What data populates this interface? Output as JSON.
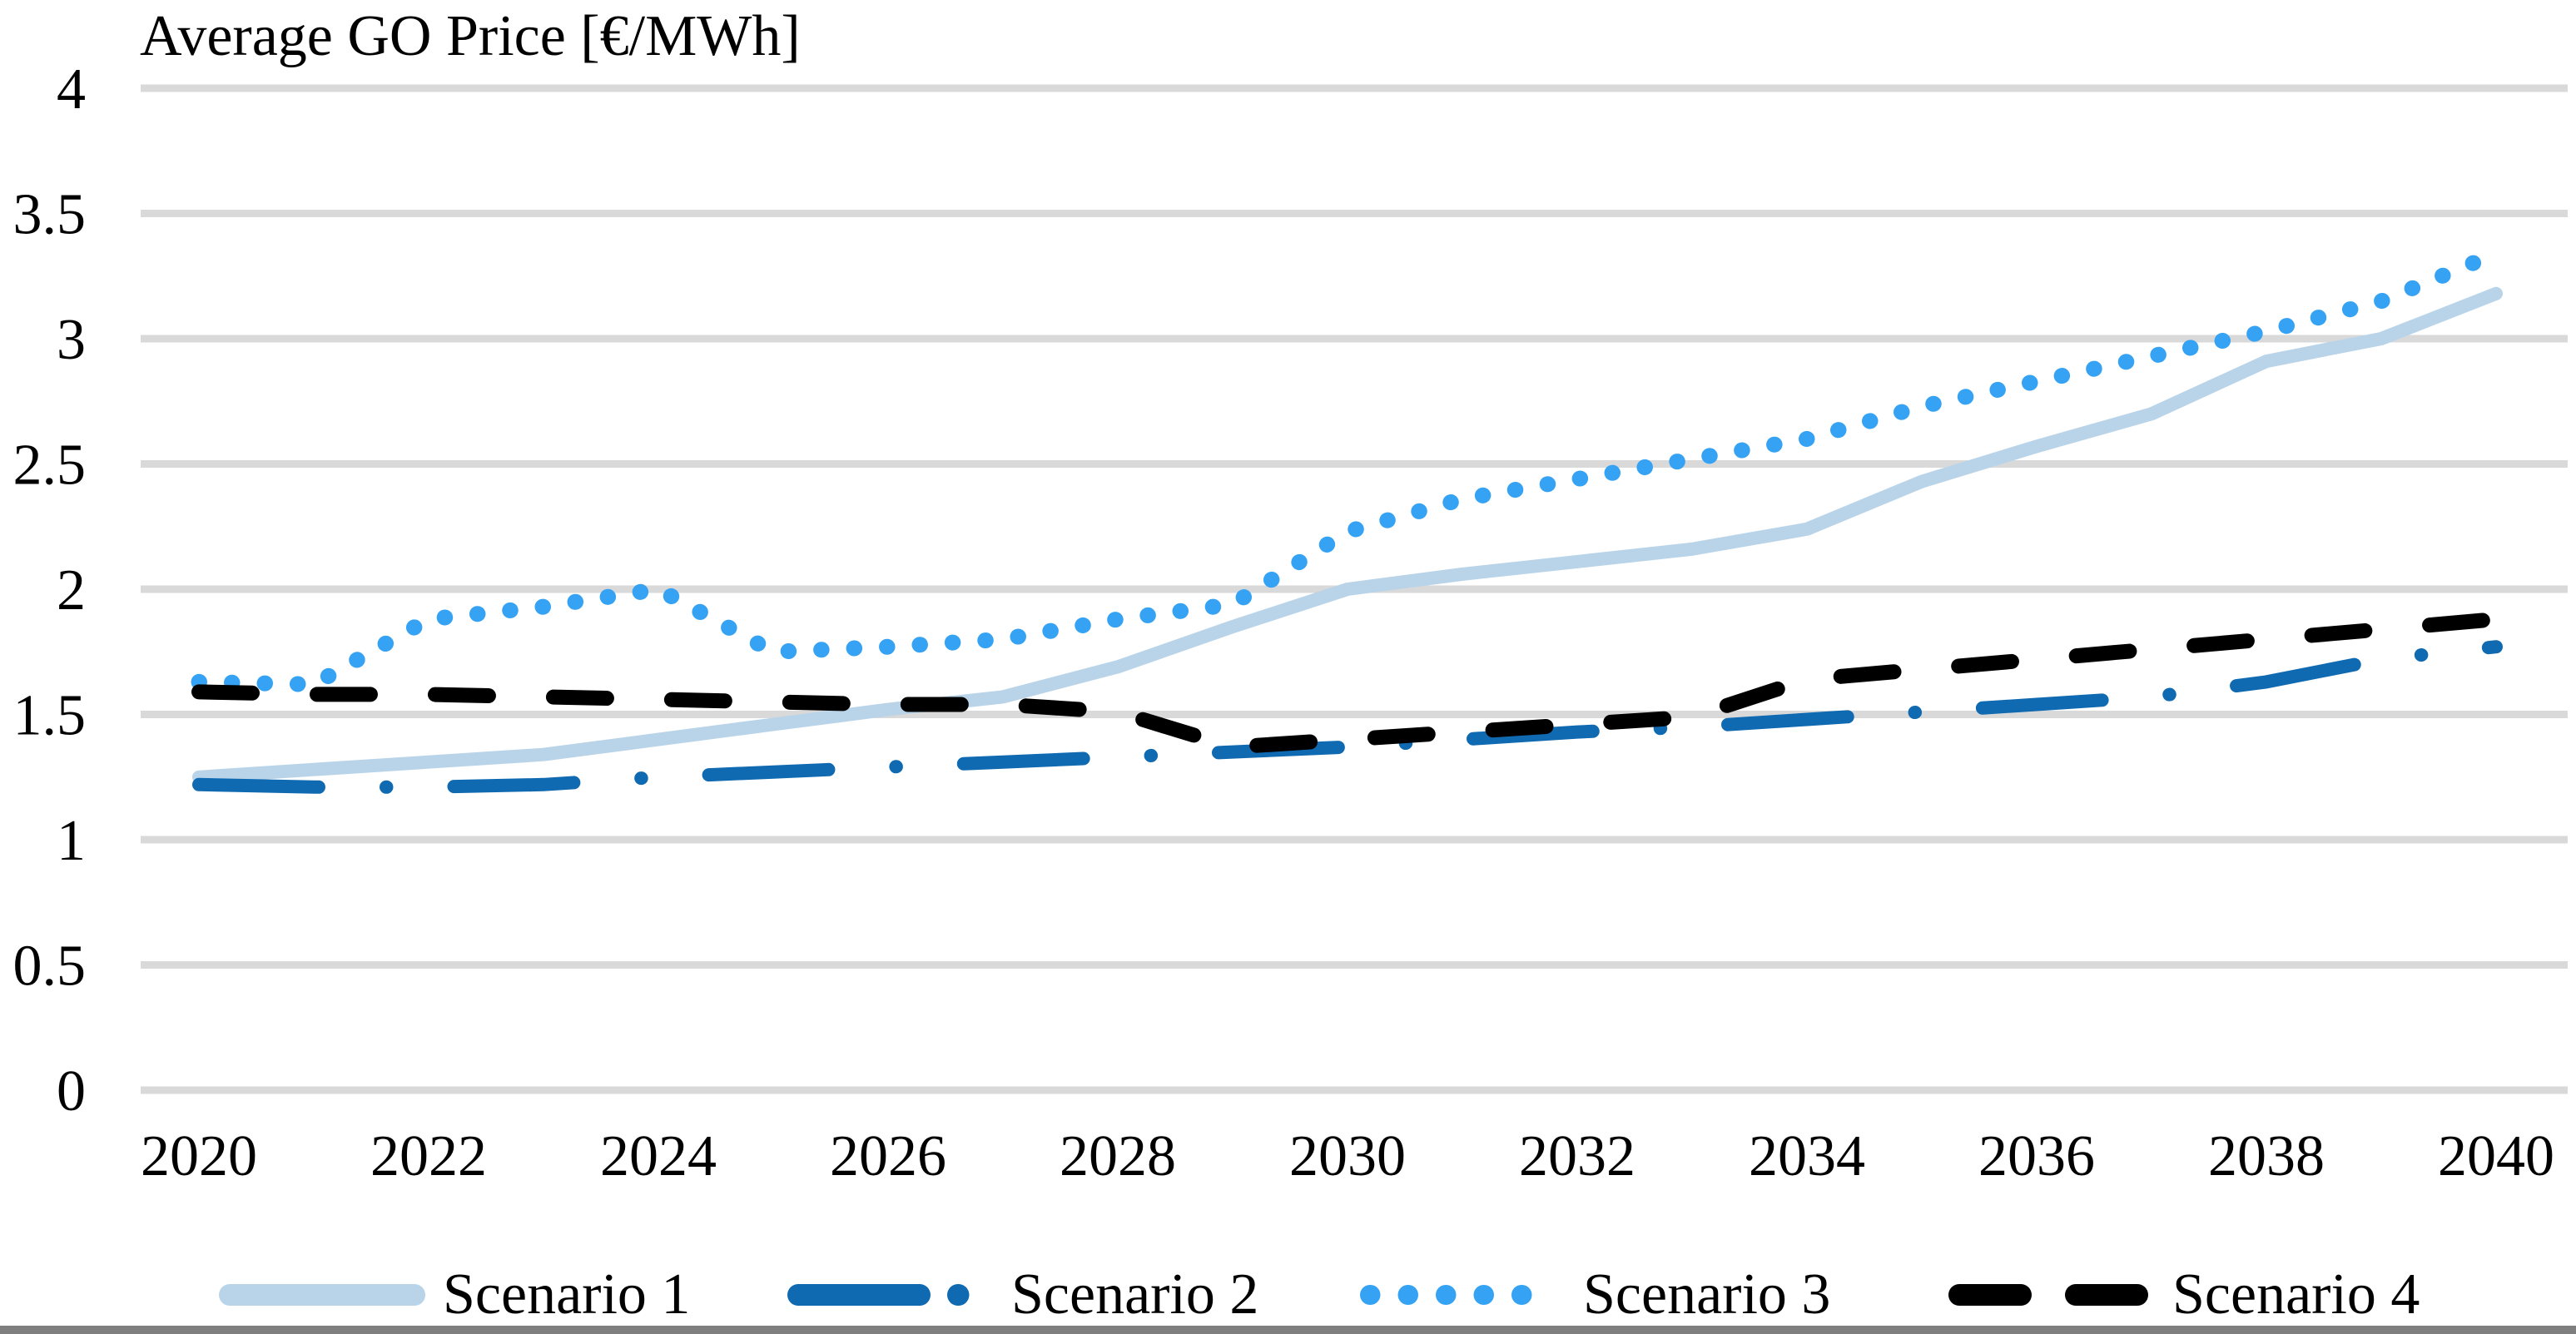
{
  "title": "Average GO Price [€/MWh]",
  "chart_data": {
    "type": "line",
    "title": "Average GO Price [€/MWh]",
    "xlabel": "",
    "ylabel": "Average GO Price [€/MWh]",
    "x": [
      2020,
      2021,
      2022,
      2023,
      2024,
      2025,
      2026,
      2027,
      2028,
      2029,
      2030,
      2031,
      2032,
      2033,
      2034,
      2035,
      2036,
      2037,
      2038,
      2039,
      2040
    ],
    "x_tick_labels": [
      "2020",
      "2022",
      "2024",
      "2026",
      "2028",
      "2030",
      "2032",
      "2034",
      "2036",
      "2038",
      "2040"
    ],
    "x_tick_years": [
      2020,
      2022,
      2024,
      2026,
      2028,
      2030,
      2032,
      2034,
      2036,
      2038,
      2040
    ],
    "y_ticks": [
      0,
      0.5,
      1,
      1.5,
      2,
      2.5,
      3,
      3.5,
      4
    ],
    "y_tick_labels": [
      "0",
      "0.5",
      "1",
      "1.5",
      "2",
      "2.5",
      "3",
      "3.5",
      "4"
    ],
    "ylim": [
      0,
      4
    ],
    "xlim": [
      2020,
      2040
    ],
    "grid": "horizontal",
    "gridline_color": "#d9d9d9",
    "legend_position": "bottom",
    "series": [
      {
        "name": "Scenario 1",
        "color": "#b9d4e9",
        "style": "solid",
        "values": [
          1.25,
          1.28,
          1.31,
          1.34,
          1.4,
          1.46,
          1.52,
          1.57,
          1.69,
          1.85,
          2.0,
          2.06,
          2.11,
          2.16,
          2.24,
          2.43,
          2.57,
          2.7,
          2.91,
          3.0,
          3.18
        ]
      },
      {
        "name": "Scenario 2",
        "color": "#0f6ab1",
        "style": "dash-dot",
        "values": [
          1.22,
          1.21,
          1.21,
          1.22,
          1.25,
          1.27,
          1.29,
          1.31,
          1.33,
          1.35,
          1.37,
          1.4,
          1.43,
          1.45,
          1.48,
          1.51,
          1.54,
          1.57,
          1.63,
          1.72,
          1.77
        ]
      },
      {
        "name": "Scenario 3",
        "color": "#36a2f4",
        "style": "dotted",
        "values": [
          1.63,
          1.62,
          1.88,
          1.93,
          2.0,
          1.75,
          1.77,
          1.8,
          1.88,
          1.94,
          2.23,
          2.36,
          2.44,
          2.52,
          2.6,
          2.73,
          2.83,
          2.93,
          3.03,
          3.15,
          3.34
        ]
      },
      {
        "name": "Scenario 4",
        "color": "#000000",
        "style": "dashed",
        "values": [
          1.59,
          1.58,
          1.58,
          1.57,
          1.56,
          1.55,
          1.54,
          1.54,
          1.51,
          1.37,
          1.4,
          1.43,
          1.46,
          1.49,
          1.64,
          1.68,
          1.72,
          1.76,
          1.8,
          1.84,
          1.88
        ]
      }
    ]
  },
  "legend": {
    "items": [
      "Scenario 1",
      "Scenario 2",
      "Scenario 3",
      "Scenario 4"
    ]
  },
  "footer_bar_color": "#7f7f7f"
}
